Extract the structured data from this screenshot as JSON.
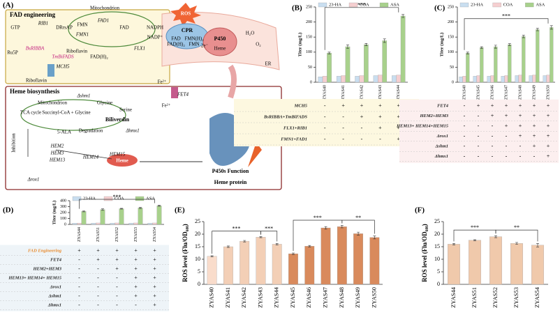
{
  "diagram": {
    "panel_label": "(A)",
    "title_fad": "FAD engineering",
    "title_heme": "Heme biosynthesis",
    "labels": [
      "GTP",
      "RIB1",
      "DRrsAP",
      "Ru5P",
      "BsRIBBA",
      "Riboflavin",
      "TmBiFADS",
      "FAD(H)₂",
      "Mitochondrion",
      "FMN",
      "FAD1",
      "FAD",
      "FMN1",
      "FLX1",
      "MCH5",
      "Riboflavin",
      "ROS",
      "NADPH",
      "NADP⁺",
      "CPR",
      "FAD",
      "FMN(H)₂",
      "FAD(H)₂",
      "FMN",
      "2e⁻",
      "P450",
      "Heme",
      "H₂O",
      "O₂",
      "ER",
      "FET4",
      "Fe²⁺",
      "Fe²⁺",
      "Δshm1",
      "Mitochondrion",
      "Glycine",
      "Serine",
      "TCA cycle",
      "Succinyl-CoA + Glycine",
      "5-ALA",
      "Inhibition",
      "HEM2",
      "HEM3",
      "HEM13",
      "HEM14",
      "HEM15",
      "Δrox1",
      "Biliverdin",
      "Degradation",
      "Δhmx1",
      "Heme",
      "P450s Function",
      "Heme protein"
    ]
  },
  "chart_data": [
    {
      "type": "bar",
      "panel_label": "(B)",
      "y_label": "Titer (mg/L)",
      "legend": "top",
      "categories": [
        "ZYAS40",
        "ZYAS41",
        "ZYAS42",
        "ZYAS43",
        "ZYAS44"
      ],
      "series": [
        {
          "name": "23-HA",
          "color": "#c9def0",
          "values": [
            18,
            20,
            20,
            22,
            22
          ]
        },
        {
          "name": "COA",
          "color": "#f5cfd0",
          "values": [
            20,
            22,
            22,
            24,
            24
          ]
        },
        {
          "name": "ASA",
          "color": "#a8d18c",
          "values": [
            97,
            118,
            125,
            138,
            220
          ],
          "errors": [
            3,
            6,
            4,
            6,
            5
          ]
        }
      ],
      "ylim": [
        0,
        250
      ],
      "yticks": [
        0,
        50,
        100,
        150,
        200,
        250
      ],
      "significance": [
        {
          "label": "***",
          "between": [
            "ZYAS40",
            "ZYAS44"
          ]
        }
      ],
      "table": {
        "color": "#fdf8e0",
        "rows": [
          {
            "label": "MCH5",
            "marks": [
              "-",
              "+",
              "+",
              "+",
              "+"
            ]
          },
          {
            "label": "BsRIBBA+TmBiFADS",
            "marks": [
              "-",
              "-",
              "+",
              "+",
              "+"
            ]
          },
          {
            "label": "FLX1+RIB1",
            "marks": [
              "-",
              "-",
              "-",
              "+",
              "+"
            ]
          },
          {
            "label": "FMN1+FAD1",
            "marks": [
              "-",
              "-",
              "-",
              "-",
              "+"
            ]
          }
        ]
      }
    },
    {
      "type": "bar",
      "panel_label": "(C)",
      "y_label": "Titer (mg/L)",
      "legend": "top",
      "categories": [
        "ZYAS40",
        "ZYAS45",
        "ZYAS46",
        "ZYAS47",
        "ZYAS48",
        "ZYAS49",
        "ZYAS50"
      ],
      "series": [
        {
          "name": "23-HA",
          "color": "#c9def0",
          "values": [
            18,
            20,
            20,
            20,
            22,
            22,
            22
          ]
        },
        {
          "name": "COA",
          "color": "#f5cfd0",
          "values": [
            20,
            22,
            22,
            22,
            24,
            24,
            24
          ]
        },
        {
          "name": "ASA",
          "color": "#a8d18c",
          "values": [
            97,
            115,
            118,
            125,
            152,
            175,
            182
          ],
          "errors": [
            3,
            3,
            5,
            3,
            4,
            4,
            6
          ]
        }
      ],
      "ylim": [
        0,
        250
      ],
      "yticks": [
        0,
        50,
        100,
        150,
        200,
        250
      ],
      "significance": [
        {
          "label": "***",
          "between": [
            "ZYAS40",
            "ZYAS50"
          ]
        }
      ],
      "table": {
        "color": "#fcefef",
        "rows": [
          {
            "label": "FET4",
            "marks": [
              "-",
              "+",
              "+",
              "+",
              "+",
              "+",
              "+"
            ]
          },
          {
            "label": "HEM2+HEM3",
            "marks": [
              "-",
              "-",
              "+",
              "+",
              "+",
              "+",
              "+"
            ]
          },
          {
            "label": "HEM13+ HEM14+HEM15",
            "marks": [
              "-",
              "-",
              "-",
              "+",
              "+",
              "+",
              "+"
            ]
          },
          {
            "label": "Δrox1",
            "marks": [
              "-",
              "-",
              "-",
              "-",
              "+",
              "+",
              "+"
            ]
          },
          {
            "label": "Δshm1",
            "marks": [
              "-",
              "-",
              "-",
              "-",
              "-",
              "+",
              "+"
            ]
          },
          {
            "label": "Δhmx1",
            "marks": [
              "-",
              "-",
              "-",
              "-",
              "-",
              "-",
              "+"
            ]
          }
        ]
      }
    },
    {
      "type": "bar",
      "panel_label": "(D)",
      "y_label": "Titer (mg/L)",
      "legend": "top",
      "categories": [
        "ZYAS44",
        "ZYAS51",
        "ZYAS52",
        "ZYAS53",
        "ZYAS54"
      ],
      "series": [
        {
          "name": "23-HA",
          "color": "#c9def0",
          "values": [
            20,
            22,
            22,
            22,
            22
          ]
        },
        {
          "name": "COA",
          "color": "#f5cfd0",
          "values": [
            22,
            24,
            24,
            24,
            24
          ]
        },
        {
          "name": "ASA",
          "color": "#a8d18c",
          "values": [
            220,
            250,
            265,
            278,
            315
          ],
          "errors": [
            8,
            12,
            6,
            10,
            8
          ]
        }
      ],
      "ylim": [
        0,
        400
      ],
      "yticks": [
        0,
        100,
        200,
        300,
        400
      ],
      "significance": [
        {
          "label": "***",
          "between": [
            "ZYAS44",
            "ZYAS54"
          ]
        }
      ],
      "table": {
        "color": "#eef4f8",
        "rows": [
          {
            "label": "FAD Engineering",
            "marks": [
              "+",
              "+",
              "+",
              "+",
              "+"
            ]
          },
          {
            "label": "FET4",
            "marks": [
              "-",
              "+",
              "+",
              "+",
              "+"
            ]
          },
          {
            "label": "HEM2+HEM3",
            "marks": [
              "-",
              "-",
              "+",
              "+",
              "+"
            ]
          },
          {
            "label": "HEM13+ HEM14+ HEM15",
            "marks": [
              "-",
              "-",
              "-",
              "+",
              "+"
            ]
          },
          {
            "label": "Δrox1",
            "marks": [
              "-",
              "-",
              "-",
              "+",
              "+"
            ]
          },
          {
            "label": "Δshm1",
            "marks": [
              "-",
              "-",
              "-",
              "+",
              "+"
            ]
          },
          {
            "label": "Δhmx1",
            "marks": [
              "-",
              "-",
              "-",
              "-",
              "+"
            ]
          }
        ]
      }
    },
    {
      "type": "bar",
      "panel_label": "(E)",
      "y_label": "ROS level (Flu/OD₆₀₀)",
      "categories": [
        "ZYAS40",
        "ZYAS41",
        "ZYAS42",
        "ZYAS43",
        "ZYAS44",
        "ZYAS45",
        "ZYAS46",
        "ZYAS47",
        "ZYAS48",
        "ZYAS49",
        "ZYAS50"
      ],
      "values": [
        11.2,
        15,
        17.2,
        18.8,
        16,
        12.2,
        15.2,
        22.5,
        23,
        20.2,
        18.7
      ],
      "errors": [
        0.2,
        0.3,
        0.3,
        0.2,
        0.3,
        0.3,
        0.3,
        0.5,
        0.5,
        0.6,
        0.6
      ],
      "colors": [
        "#f9dccb",
        "#f3cfb6",
        "#f3cfb6",
        "#f3cfb6",
        "#f3cfb6",
        "#d98a5c",
        "#d98a5c",
        "#d98a5c",
        "#d98a5c",
        "#d98a5c",
        "#d98a5c"
      ],
      "ylim": [
        0,
        25
      ],
      "yticks": [
        0,
        5,
        10,
        15,
        20,
        25
      ],
      "significance": [
        {
          "label": "***",
          "between": [
            "ZYAS40",
            "ZYAS43"
          ]
        },
        {
          "label": "***",
          "between": [
            "ZYAS43",
            "ZYAS44"
          ]
        },
        {
          "label": "***",
          "between": [
            "ZYAS45",
            "ZYAS48"
          ]
        },
        {
          "label": "**",
          "between": [
            "ZYAS48",
            "ZYAS50"
          ]
        }
      ]
    },
    {
      "type": "bar",
      "panel_label": "(F)",
      "y_label": "ROS level (Flu/OD₆₀₀)",
      "categories": [
        "ZYAS44",
        "ZYAS51",
        "ZYAS52",
        "ZYAS53",
        "ZYAS54"
      ],
      "values": [
        16,
        17.6,
        19,
        16.3,
        15.6
      ],
      "errors": [
        0.3,
        0.2,
        0.4,
        0.4,
        0.7
      ],
      "colors": [
        "#f0c9ab",
        "#f0c9ab",
        "#f0c9ab",
        "#f0c9ab",
        "#f0c9ab"
      ],
      "ylim": [
        0,
        25
      ],
      "yticks": [
        0,
        5,
        10,
        15,
        20,
        25
      ],
      "significance": [
        {
          "label": "***",
          "between": [
            "ZYAS44",
            "ZYAS52"
          ]
        },
        {
          "label": "**",
          "between": [
            "ZYAS52",
            "ZYAS54"
          ]
        }
      ]
    }
  ]
}
